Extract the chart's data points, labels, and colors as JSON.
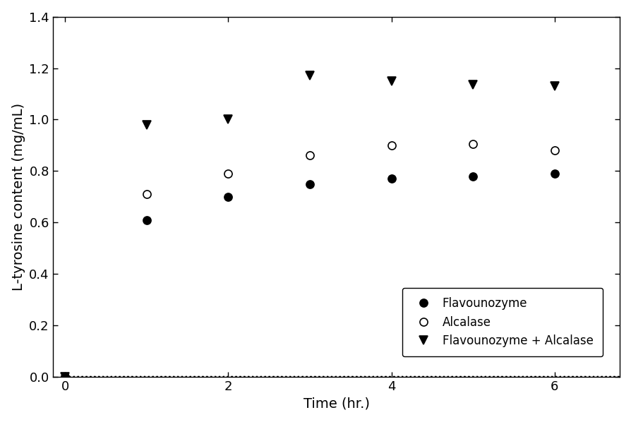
{
  "series": [
    {
      "label": "Flavounozyme",
      "x": [
        0,
        1,
        2,
        3,
        4,
        5,
        6
      ],
      "y": [
        0.0,
        0.61,
        0.7,
        0.75,
        0.77,
        0.78,
        0.79
      ],
      "marker": "o",
      "fillstyle": "full",
      "color": "black",
      "markersize": 8
    },
    {
      "label": "Alcalase",
      "x": [
        0,
        1,
        2,
        3,
        4,
        5,
        6
      ],
      "y": [
        0.0,
        0.71,
        0.79,
        0.86,
        0.9,
        0.905,
        0.88
      ],
      "marker": "o",
      "fillstyle": "none",
      "color": "black",
      "markersize": 8
    },
    {
      "label": "Flavounozyme + Alcalase",
      "x": [
        0,
        1,
        2,
        3,
        4,
        5,
        6
      ],
      "y": [
        0.0,
        0.98,
        1.0,
        1.17,
        1.15,
        1.135,
        1.13
      ],
      "marker": "v",
      "fillstyle": "full",
      "color": "black",
      "markersize": 8
    }
  ],
  "xlabel": "Time (hr.)",
  "ylabel": "L-tyrosine content (mg/mL)",
  "xlim": [
    -0.15,
    6.8
  ],
  "ylim": [
    0.0,
    1.4
  ],
  "xticks": [
    0,
    2,
    4,
    6
  ],
  "yticks": [
    0.0,
    0.2,
    0.4,
    0.6,
    0.8,
    1.0,
    1.2,
    1.4
  ],
  "curve_color": "black",
  "curve_linestyle": ":",
  "curve_linewidth": 1.6,
  "bg_color": "#ffffff",
  "tick_fontsize": 13,
  "label_fontsize": 14
}
